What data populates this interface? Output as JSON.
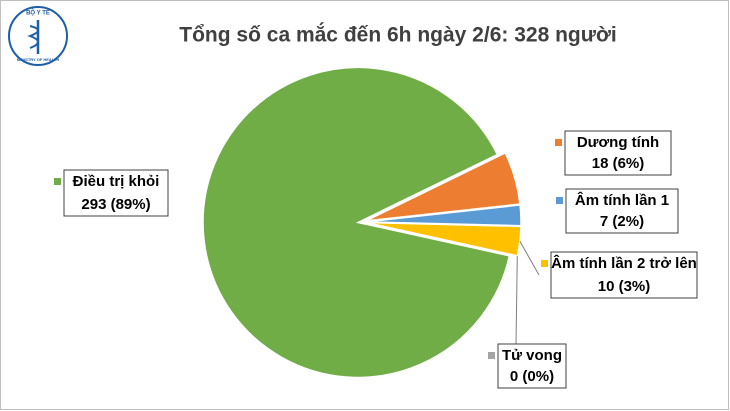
{
  "logo": {
    "top": "BỘ Y TẾ",
    "bottom": "MINISTRY OF HEALTH"
  },
  "chart_data": {
    "type": "pie",
    "title": "Tổng số ca mắc đến 6h ngày 2/6: 328 người",
    "categories": [
      "Dương tính",
      "Âm tính lần 1",
      "Âm tính lần 2 trở lên",
      "Tử vong",
      "Điều trị khỏi"
    ],
    "values": [
      18,
      7,
      10,
      0,
      293
    ],
    "value_labels": [
      "18 (6%)",
      "7 (2%)",
      "10 (3%)",
      "0 (0%)",
      "293 (89%)"
    ],
    "colors": [
      "#ed7d31",
      "#5b9bd5",
      "#ffc000",
      "#a5a5a5",
      "#70ad47"
    ]
  }
}
